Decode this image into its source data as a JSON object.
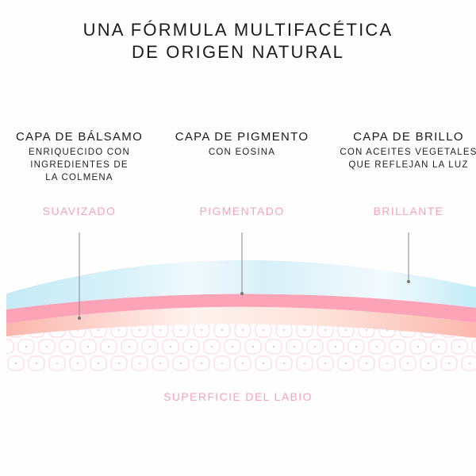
{
  "title": [
    "UNA FÓRMULA MULTIFACÉTICA",
    "DE ORIGEN NATURAL"
  ],
  "layers": [
    {
      "name": "CAPA DE BÁLSAMO",
      "description": "ENRIQUECIDO CON\nINGREDIENTES DE\nLA COLMENA",
      "effect": "SUAVIZADO"
    },
    {
      "name": "CAPA DE PIGMENTO",
      "description": "CON EOSINA",
      "effect": "PIGMENTADO"
    },
    {
      "name": "CAPA DE BRILLO",
      "description": "CON ACEITES VEGETALES\nQUE REFLEJAN LA LUZ",
      "effect": "BRILLANTE"
    }
  ],
  "surface_label": "SUPERFICIE DEL LABIO",
  "colors": {
    "gloss": "#c9ecf6",
    "pigment": "#fda3b7",
    "balm": "#fcc9bd",
    "accent": "#f7a3b7",
    "cells": "#fbd3da"
  }
}
